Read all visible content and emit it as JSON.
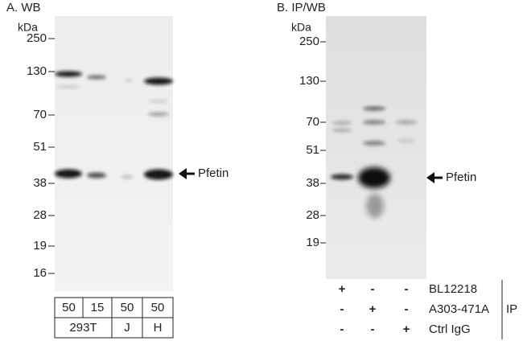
{
  "panel_a": {
    "title": "A. WB",
    "unit": "kDa",
    "markers": [
      "250",
      "130",
      "70",
      "51",
      "38",
      "28",
      "19",
      "16"
    ],
    "arrow_label": "Pfetin",
    "loads": [
      "50",
      "15",
      "50",
      "50"
    ],
    "cell_lines": [
      "293T",
      "J",
      "H"
    ]
  },
  "panel_b": {
    "title": "B. IP/WB",
    "unit": "kDa",
    "markers": [
      "250",
      "130",
      "70",
      "51",
      "38",
      "28",
      "19"
    ],
    "arrow_label": "Pfetin",
    "ip_rows": [
      {
        "signs": [
          "+",
          "-",
          "-"
        ],
        "label": "BL12218"
      },
      {
        "signs": [
          "-",
          "+",
          "-"
        ],
        "label": "A303-471A"
      },
      {
        "signs": [
          "-",
          "-",
          "+"
        ],
        "label": "Ctrl IgG"
      }
    ],
    "ip_label": "IP"
  }
}
